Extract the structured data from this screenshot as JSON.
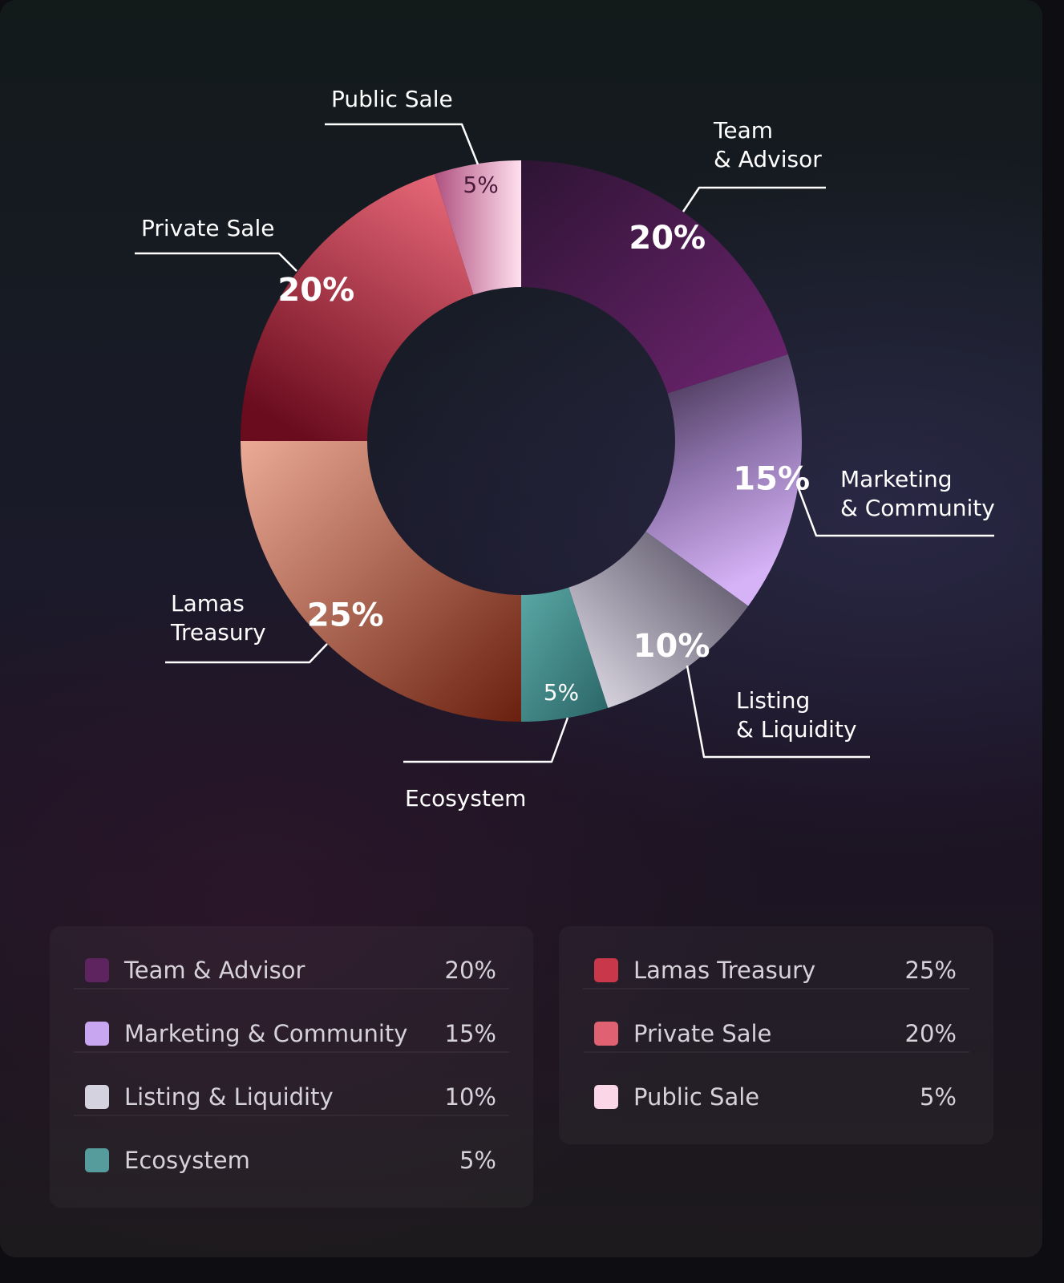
{
  "colors": {
    "team_advisor": "#5e2460",
    "marketing_community": "#c8a6f0",
    "listing_liquidity": "#d4d2de",
    "ecosystem": "#569c9c",
    "lamas_treasury": "#c8374a",
    "private_sale": "#e06272",
    "public_sale": "#fbd6e6"
  },
  "chart_data": {
    "type": "donut",
    "slices": [
      {
        "key": "team_advisor",
        "label_lines": [
          "Team",
          "& Advisor"
        ],
        "value": 20,
        "value_label": "20%"
      },
      {
        "key": "marketing_community",
        "label_lines": [
          "Marketing",
          "& Community"
        ],
        "value": 15,
        "value_label": "15%"
      },
      {
        "key": "listing_liquidity",
        "label_lines": [
          "Listing",
          "& Liquidity"
        ],
        "value": 10,
        "value_label": "10%"
      },
      {
        "key": "ecosystem",
        "label_lines": [
          "Ecosystem"
        ],
        "value": 5,
        "value_label": "5%"
      },
      {
        "key": "lamas_treasury",
        "label_lines": [
          "Lamas",
          "Treasury"
        ],
        "value": 25,
        "value_label": "25%"
      },
      {
        "key": "private_sale",
        "label_lines": [
          "Private Sale"
        ],
        "value": 20,
        "value_label": "20%"
      },
      {
        "key": "public_sale",
        "label_lines": [
          "Public Sale"
        ],
        "value": 5,
        "value_label": "5%"
      }
    ]
  },
  "legend": {
    "left": [
      {
        "label": "Team & Advisor",
        "value": "20%",
        "color": "#5e2460"
      },
      {
        "label": "Marketing & Community",
        "value": "15%",
        "color": "#c8a6f0"
      },
      {
        "label": "Listing & Liquidity",
        "value": "10%",
        "color": "#d4d2de"
      },
      {
        "label": "Ecosystem",
        "value": "5%",
        "color": "#569c9c"
      }
    ],
    "right": [
      {
        "label": "Lamas Treasury",
        "value": "25%",
        "color": "#c8374a"
      },
      {
        "label": "Private Sale",
        "value": "20%",
        "color": "#e06272"
      },
      {
        "label": "Public Sale",
        "value": "5%",
        "color": "#fbd6e6"
      }
    ]
  }
}
